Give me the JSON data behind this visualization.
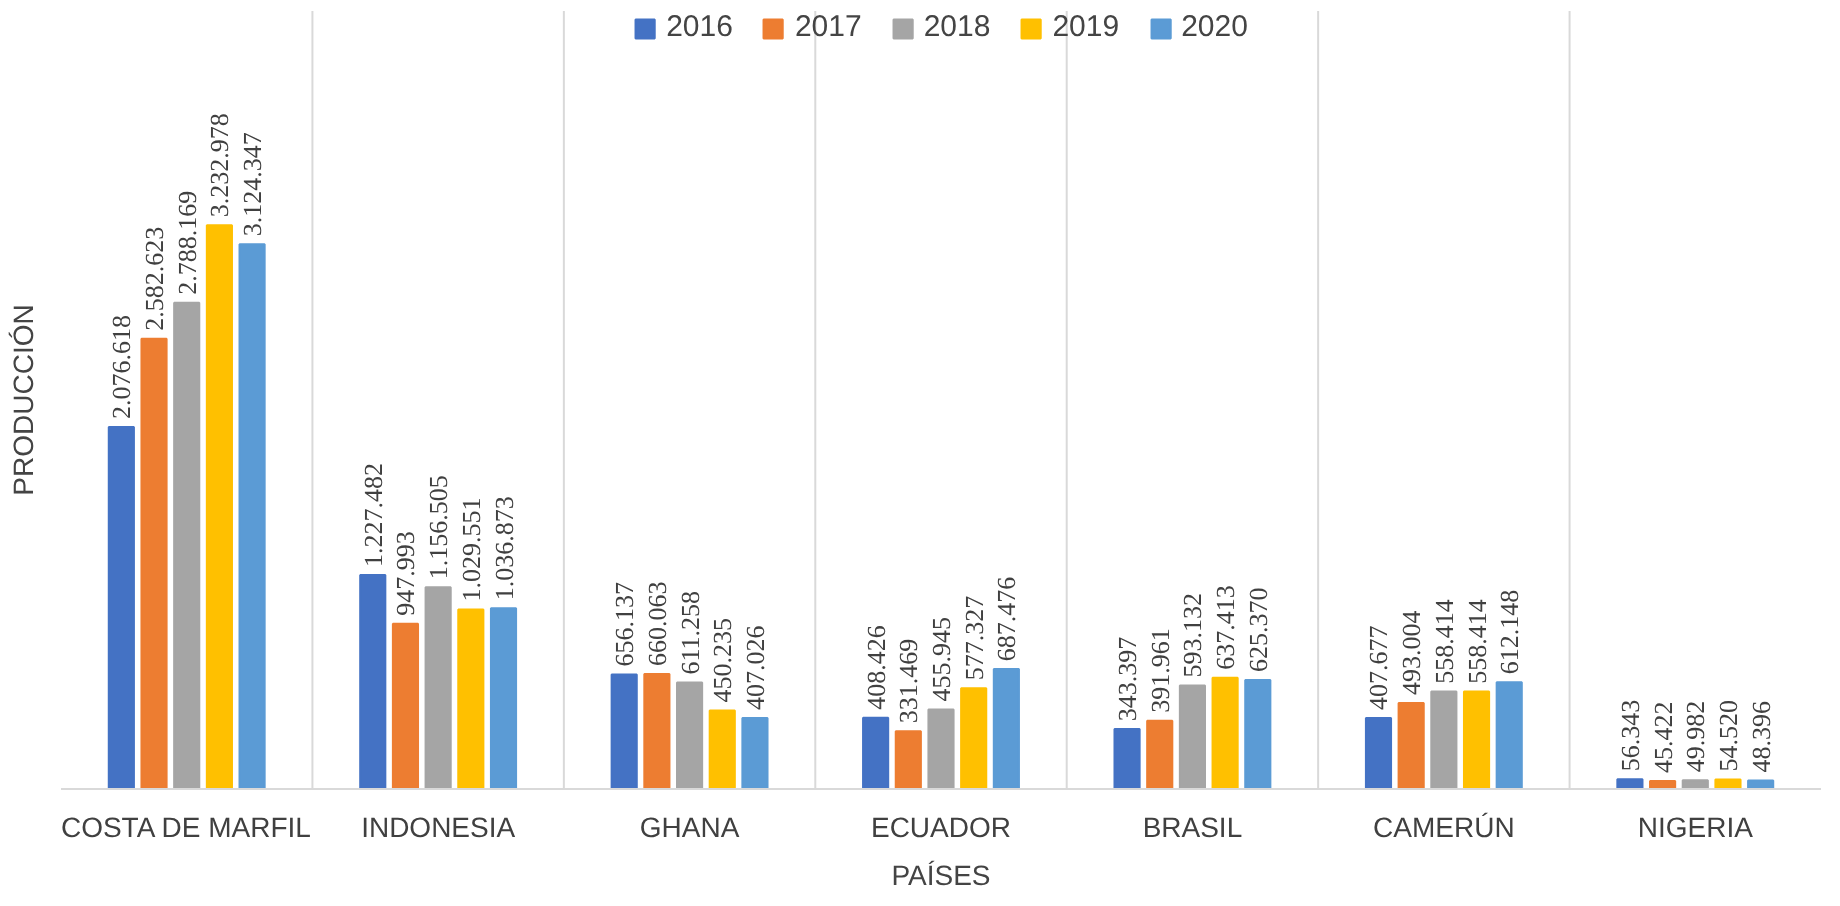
{
  "chart_data": {
    "type": "bar",
    "xlabel": "PAÍSES",
    "ylabel": "PRODUCCIÓN",
    "categories": [
      "COSTA DE MARFIL",
      "INDONESIA",
      "GHANA",
      "ECUADOR",
      "BRASIL",
      "CAMERÚN",
      "NIGERIA"
    ],
    "series": [
      {
        "name": "2016",
        "color": "#4472c4",
        "values": [
          2076618,
          1227482,
          656137,
          408426,
          343397,
          407677,
          56343
        ],
        "value_labels": [
          "2.076.618",
          "1.227.482",
          "656.137",
          "408.426",
          "343.397",
          "407.677",
          "56.343"
        ]
      },
      {
        "name": "2017",
        "color": "#ed7d31",
        "values": [
          2582623,
          947993,
          660063,
          331469,
          391961,
          493004,
          45422
        ],
        "value_labels": [
          "2.582.623",
          "947.993",
          "660.063",
          "331.469",
          "391.961",
          "493.004",
          "45.422"
        ]
      },
      {
        "name": "2018",
        "color": "#a5a5a5",
        "values": [
          2788169,
          1156505,
          611258,
          455945,
          593132,
          558414,
          49982
        ],
        "value_labels": [
          "2.788.169",
          "1.156.505",
          "611.258",
          "455.945",
          "593.132",
          "558.414",
          "49.982"
        ]
      },
      {
        "name": "2019",
        "color": "#ffc000",
        "values": [
          3232978,
          1029551,
          450235,
          577327,
          637413,
          558414,
          54520
        ],
        "value_labels": [
          "3.232.978",
          "1.029.551",
          "450.235",
          "577.327",
          "637.413",
          "558.414",
          "54.520"
        ]
      },
      {
        "name": "2020",
        "color": "#5b9bd5",
        "values": [
          3124347,
          1036873,
          407026,
          687476,
          625370,
          612148,
          48396
        ],
        "value_labels": [
          "3.124.347",
          "1.036.873",
          "407.026",
          "687.476",
          "625.370",
          "612.148",
          "48.396"
        ]
      }
    ],
    "grid": "x",
    "legend": "top"
  }
}
